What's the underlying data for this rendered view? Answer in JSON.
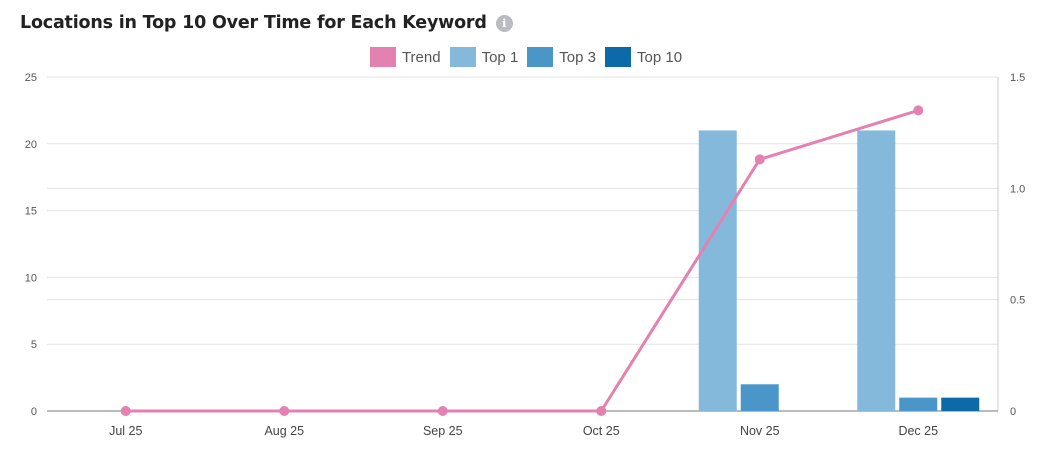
{
  "chart_data": {
    "type": "bar",
    "title": "Locations in Top 10 Over Time for Each Keyword",
    "categories": [
      "Jul 25",
      "Aug 25",
      "Sep 25",
      "Oct 25",
      "Nov 25",
      "Dec 25"
    ],
    "series": [
      {
        "name": "Top 1",
        "type": "bar",
        "axis": "left",
        "color": "#85b9dc",
        "values": [
          0,
          0,
          0,
          0,
          21,
          21
        ]
      },
      {
        "name": "Top 3",
        "type": "bar",
        "axis": "left",
        "color": "#4b96c8",
        "values": [
          0,
          0,
          0,
          0,
          2,
          1
        ]
      },
      {
        "name": "Top 10",
        "type": "bar",
        "axis": "left",
        "color": "#0d6aa8",
        "values": [
          0,
          0,
          0,
          0,
          0,
          1
        ]
      },
      {
        "name": "Trend",
        "type": "line",
        "axis": "right",
        "color": "#e381b0",
        "values": [
          0,
          0,
          0,
          0,
          1.13,
          1.35
        ]
      }
    ],
    "legend_order": [
      "Trend",
      "Top 1",
      "Top 3",
      "Top 10"
    ],
    "y_left": {
      "min": 0,
      "max": 25,
      "ticks": [
        "0",
        "5",
        "10",
        "15",
        "20",
        "25"
      ]
    },
    "y_right": {
      "min": 0,
      "max": 1.5,
      "ticks": [
        "0",
        "0.5",
        "1.0",
        "1.5"
      ]
    },
    "grid": true,
    "legend_position": "top-center"
  },
  "icons": {
    "info": "info-icon"
  },
  "info_glyph": "i"
}
